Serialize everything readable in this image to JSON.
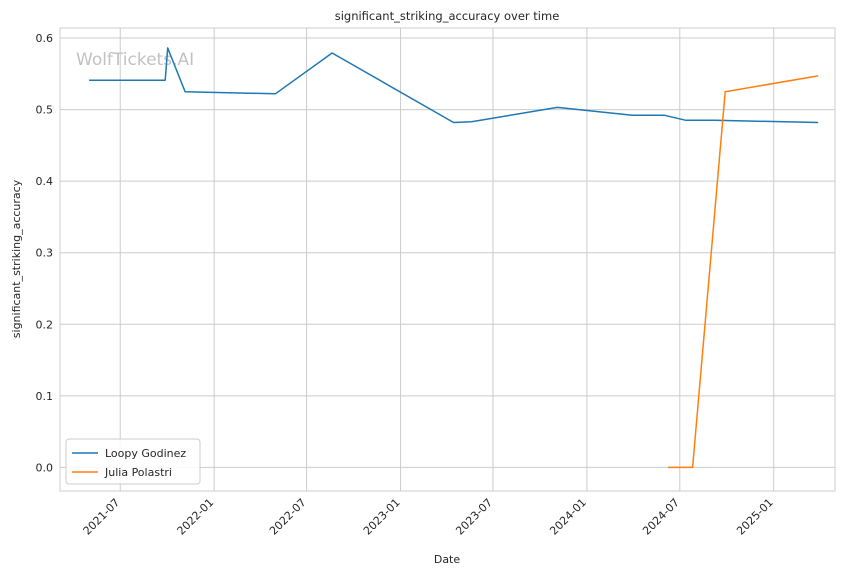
{
  "chart_data": {
    "type": "line",
    "title": "significant_striking_accuracy over time",
    "xlabel": "Date",
    "ylabel": "significant_striking_accuracy",
    "watermark": "WolfTickets.AI",
    "grid": true,
    "legend_position": "lower-left",
    "xlim": [
      "2021-03-05",
      "2025-05-01"
    ],
    "ylim": [
      -0.033,
      0.614
    ],
    "x_ticks": [
      {
        "date": "2021-07-01",
        "label": "2021-07"
      },
      {
        "date": "2022-01-01",
        "label": "2022-01"
      },
      {
        "date": "2022-07-01",
        "label": "2022-07"
      },
      {
        "date": "2023-01-01",
        "label": "2023-01"
      },
      {
        "date": "2023-07-01",
        "label": "2023-07"
      },
      {
        "date": "2024-01-01",
        "label": "2024-01"
      },
      {
        "date": "2024-07-01",
        "label": "2024-07"
      },
      {
        "date": "2025-01-01",
        "label": "2025-01"
      }
    ],
    "y_ticks": [
      {
        "value": 0.0,
        "label": "0.0"
      },
      {
        "value": 0.1,
        "label": "0.1"
      },
      {
        "value": 0.2,
        "label": "0.2"
      },
      {
        "value": 0.3,
        "label": "0.3"
      },
      {
        "value": 0.4,
        "label": "0.4"
      },
      {
        "value": 0.5,
        "label": "0.5"
      },
      {
        "value": 0.6,
        "label": "0.6"
      }
    ],
    "series": [
      {
        "name": "Loopy Godinez",
        "color": "#1f77b4",
        "points": [
          {
            "x": "2021-05-01",
            "y": 0.541
          },
          {
            "x": "2021-09-27",
            "y": 0.541
          },
          {
            "x": "2021-10-02",
            "y": 0.586
          },
          {
            "x": "2021-11-05",
            "y": 0.525
          },
          {
            "x": "2022-05-01",
            "y": 0.522
          },
          {
            "x": "2022-08-20",
            "y": 0.579
          },
          {
            "x": "2023-04-15",
            "y": 0.482
          },
          {
            "x": "2023-05-20",
            "y": 0.483
          },
          {
            "x": "2023-11-04",
            "y": 0.503
          },
          {
            "x": "2024-03-30",
            "y": 0.492
          },
          {
            "x": "2024-06-01",
            "y": 0.492
          },
          {
            "x": "2024-07-13",
            "y": 0.485
          },
          {
            "x": "2024-09-07",
            "y": 0.485
          },
          {
            "x": "2025-03-29",
            "y": 0.482
          }
        ]
      },
      {
        "name": "Julia Polastri",
        "color": "#ff7f0e",
        "points": [
          {
            "x": "2024-06-08",
            "y": 0.0
          },
          {
            "x": "2024-07-26",
            "y": 0.0
          },
          {
            "x": "2024-09-28",
            "y": 0.525
          },
          {
            "x": "2025-03-29",
            "y": 0.547
          }
        ]
      }
    ]
  }
}
